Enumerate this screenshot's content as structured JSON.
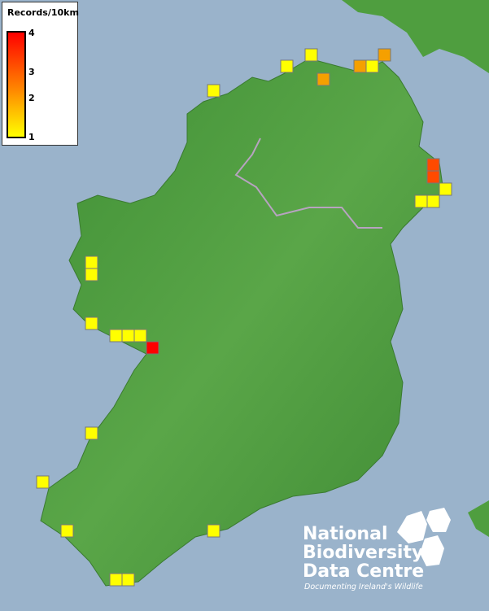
{
  "legend": {
    "title": "Records/10km",
    "ticks": [
      "4",
      "3",
      "2",
      "1"
    ],
    "colors": {
      "low": "#ffff00",
      "mid": "#ff9900",
      "high": "#ff0000"
    }
  },
  "records": [
    1,
    1,
    1,
    2,
    2,
    1,
    2,
    3,
    3,
    1,
    1,
    1,
    1,
    1,
    1,
    1,
    1,
    1,
    4,
    1,
    1,
    1,
    1,
    1,
    1
  ],
  "colors": {
    "sea": "#9ab3cb",
    "land": "#4f9e3f",
    "border": "#b0a0b8"
  },
  "logo": {
    "line1": "National",
    "line2": "Biodiversity",
    "line3": "Data Centre",
    "tagline": "Documenting Ireland's Wildlife"
  }
}
